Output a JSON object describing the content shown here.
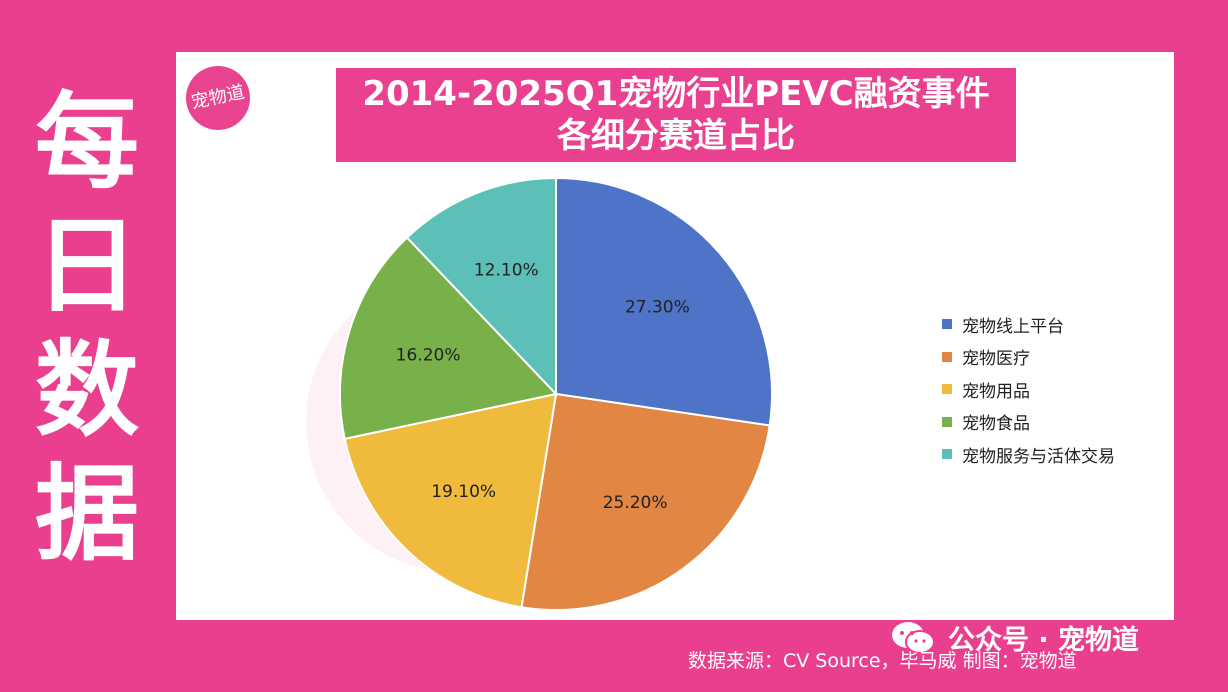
{
  "side_title": [
    "每",
    "日",
    "数",
    "据"
  ],
  "logo_text": "宠物道",
  "chart_data": {
    "type": "pie",
    "title_lines": [
      "2014-2025Q1宠物行业PEVC融资事件",
      "各细分赛道占比"
    ],
    "categories": [
      "宠物线上平台",
      "宠物医疗",
      "宠物用品",
      "宠物食品",
      "宠物服务与活体交易"
    ],
    "values": [
      27.3,
      25.2,
      19.1,
      16.2,
      12.1
    ],
    "labels": [
      "27.30%",
      "25.20%",
      "19.10%",
      "16.20%",
      "12.10%"
    ],
    "colors": [
      "#4f73c6",
      "#e28743",
      "#f0bb3c",
      "#78b04a",
      "#5cc0b8"
    ],
    "legend_position": "right"
  },
  "footer": {
    "wechat_label": "公众号 · 宠物道",
    "source": "数据来源：CV Source，毕马威   制图：宠物道"
  },
  "colors": {
    "background": "#ea3f8e",
    "title_bg": "#e9408f"
  }
}
